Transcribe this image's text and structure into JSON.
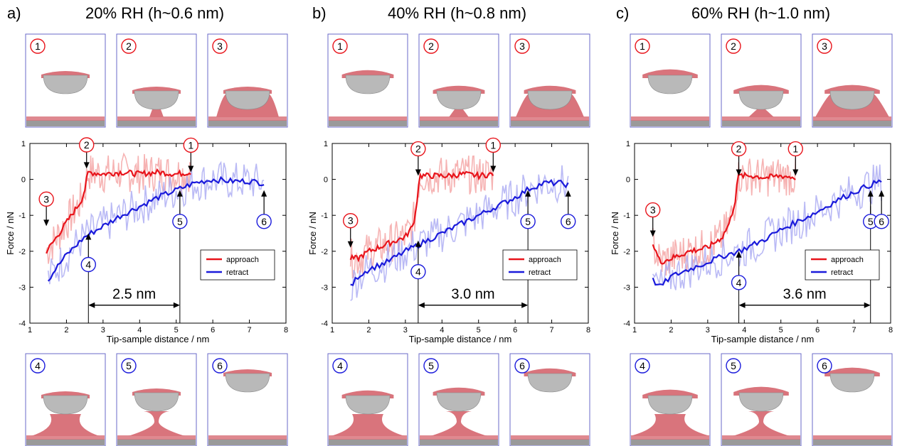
{
  "figure_panels": [
    {
      "letter": "a)",
      "title": "20% RH (h~0.6 nm)",
      "snapshots_top": [
        "1",
        "2",
        "3"
      ],
      "snapshots_bottom": [
        "4",
        "5",
        "6"
      ],
      "dimension_label": "2.5 nm"
    },
    {
      "letter": "b)",
      "title": "40% RH (h~0.8 nm)",
      "snapshots_top": [
        "1",
        "2",
        "3"
      ],
      "snapshots_bottom": [
        "4",
        "5",
        "6"
      ],
      "dimension_label": "3.0 nm"
    },
    {
      "letter": "c)",
      "title": "60% RH  (h~1.0 nm)",
      "snapshots_top": [
        "1",
        "2",
        "3"
      ],
      "snapshots_bottom": [
        "4",
        "5",
        "6"
      ],
      "dimension_label": "3.6 nm"
    }
  ],
  "colors": {
    "approach": "#e8141b",
    "retract": "#1a1adb",
    "approach_light": "#f4a0a0",
    "retract_light": "#a9a9f2",
    "water": "#d9747c",
    "tip": "#b9b9b9",
    "frame": "#6a6ac8"
  },
  "chart_data": [
    {
      "type": "line",
      "xlabel": "Tip-sample distance / nm",
      "ylabel": "Force / nN",
      "xlim": [
        1,
        8
      ],
      "ylim": [
        -4,
        1
      ],
      "xticks": [
        1,
        2,
        3,
        4,
        5,
        6,
        7,
        8
      ],
      "yticks": [
        -4,
        -3,
        -2,
        -1,
        0,
        1
      ],
      "legend_placement": "lower-right",
      "series": [
        {
          "name": "approach",
          "x": [
            1.45,
            1.6,
            1.8,
            2.0,
            2.2,
            2.4,
            2.5,
            2.55,
            2.6,
            3.0,
            3.5,
            4.0,
            4.5,
            5.0,
            5.4
          ],
          "y": [
            -2.0,
            -1.8,
            -1.5,
            -1.2,
            -0.9,
            -0.6,
            -0.3,
            0.0,
            0.2,
            0.15,
            0.2,
            0.15,
            0.2,
            0.15,
            0.2
          ]
        },
        {
          "name": "retract",
          "x": [
            1.5,
            1.7,
            2.0,
            2.5,
            3.0,
            3.5,
            4.0,
            4.5,
            5.0,
            5.5,
            6.0,
            6.5,
            7.0,
            7.4
          ],
          "y": [
            -2.8,
            -2.5,
            -2.1,
            -1.6,
            -1.3,
            -1.0,
            -0.75,
            -0.5,
            -0.3,
            -0.1,
            0.0,
            -0.05,
            -0.05,
            -0.1
          ]
        }
      ],
      "markers": [
        {
          "label": "1",
          "series": "approach",
          "x": 5.4,
          "y": 0.2,
          "position": "above"
        },
        {
          "label": "2",
          "series": "approach",
          "x": 2.55,
          "y": 0.3,
          "position": "above"
        },
        {
          "label": "3",
          "series": "approach",
          "x": 1.45,
          "y": -1.3,
          "position": "above"
        },
        {
          "label": "4",
          "series": "retract",
          "x": 2.6,
          "y": -1.5,
          "position": "below"
        },
        {
          "label": "5",
          "series": "retract",
          "x": 5.1,
          "y": -0.3,
          "position": "below"
        },
        {
          "label": "6",
          "series": "retract",
          "x": 7.4,
          "y": -0.3,
          "position": "below"
        }
      ],
      "dimension": {
        "x1": 2.6,
        "x2": 5.1,
        "y": -3.5,
        "label": "2.5 nm"
      }
    },
    {
      "type": "line",
      "xlabel": "Tip-sample distance / nm",
      "ylabel": "Force / nN",
      "xlim": [
        1,
        8
      ],
      "ylim": [
        -4,
        1
      ],
      "xticks": [
        1,
        2,
        3,
        4,
        5,
        6,
        7,
        8
      ],
      "yticks": [
        -4,
        -3,
        -2,
        -1,
        0,
        1
      ],
      "legend_placement": "lower-right",
      "series": [
        {
          "name": "approach",
          "x": [
            1.5,
            1.7,
            2.0,
            2.5,
            3.0,
            3.2,
            3.3,
            3.35,
            3.4,
            3.8,
            4.2,
            4.6,
            5.0,
            5.4
          ],
          "y": [
            -2.2,
            -2.2,
            -2.0,
            -1.8,
            -1.6,
            -1.3,
            -0.8,
            -0.2,
            0.1,
            0.1,
            0.1,
            0.15,
            0.1,
            0.15
          ]
        },
        {
          "name": "retract",
          "x": [
            1.5,
            1.7,
            2.0,
            2.5,
            3.0,
            3.4,
            4.0,
            4.5,
            5.0,
            5.5,
            6.0,
            6.4,
            6.8,
            7.2,
            7.45
          ],
          "y": [
            -3.0,
            -2.7,
            -2.5,
            -2.3,
            -2.0,
            -1.8,
            -1.5,
            -1.25,
            -1.0,
            -0.75,
            -0.5,
            -0.25,
            -0.1,
            -0.1,
            -0.15
          ]
        }
      ],
      "markers": [
        {
          "label": "1",
          "series": "approach",
          "x": 5.4,
          "y": 0.2,
          "position": "above"
        },
        {
          "label": "2",
          "series": "approach",
          "x": 3.35,
          "y": 0.1,
          "position": "above"
        },
        {
          "label": "3",
          "series": "approach",
          "x": 1.5,
          "y": -1.9,
          "position": "above"
        },
        {
          "label": "4",
          "series": "retract",
          "x": 3.35,
          "y": -1.7,
          "position": "below"
        },
        {
          "label": "5",
          "series": "retract",
          "x": 6.35,
          "y": -0.3,
          "position": "below"
        },
        {
          "label": "6",
          "series": "retract",
          "x": 7.45,
          "y": -0.3,
          "position": "below"
        }
      ],
      "dimension": {
        "x1": 3.35,
        "x2": 6.35,
        "y": -3.5,
        "label": "3.0 nm"
      }
    },
    {
      "type": "line",
      "xlabel": "Tip-sample distance / nm",
      "ylabel": "Force / nN",
      "xlim": [
        1,
        8
      ],
      "ylim": [
        -4,
        1
      ],
      "xticks": [
        1,
        2,
        3,
        4,
        5,
        6,
        7,
        8
      ],
      "yticks": [
        -4,
        -3,
        -2,
        -1,
        0,
        1
      ],
      "legend_placement": "lower-right",
      "series": [
        {
          "name": "approach",
          "x": [
            1.5,
            1.7,
            2.0,
            2.5,
            3.0,
            3.4,
            3.6,
            3.75,
            3.8,
            3.85,
            4.2,
            4.6,
            5.0,
            5.4
          ],
          "y": [
            -1.8,
            -2.3,
            -2.2,
            -2.0,
            -1.9,
            -1.6,
            -1.2,
            -0.6,
            -0.1,
            0.1,
            0.1,
            0.05,
            0.1,
            0.05
          ]
        },
        {
          "name": "retract",
          "x": [
            1.5,
            1.7,
            2.0,
            2.5,
            3.0,
            3.5,
            3.85,
            4.5,
            5.0,
            5.5,
            6.0,
            6.5,
            7.0,
            7.45,
            7.75
          ],
          "y": [
            -2.8,
            -3.0,
            -2.7,
            -2.5,
            -2.3,
            -2.1,
            -2.0,
            -1.7,
            -1.4,
            -1.15,
            -0.9,
            -0.6,
            -0.35,
            -0.15,
            -0.05
          ]
        }
      ],
      "markers": [
        {
          "label": "1",
          "series": "approach",
          "x": 5.4,
          "y": 0.1,
          "position": "above"
        },
        {
          "label": "2",
          "series": "approach",
          "x": 3.85,
          "y": 0.1,
          "position": "above"
        },
        {
          "label": "3",
          "series": "approach",
          "x": 1.5,
          "y": -1.6,
          "position": "above"
        },
        {
          "label": "4",
          "series": "retract",
          "x": 3.85,
          "y": -2.0,
          "position": "below"
        },
        {
          "label": "5",
          "series": "retract",
          "x": 7.45,
          "y": -0.3,
          "position": "below"
        },
        {
          "label": "6",
          "series": "retract",
          "x": 7.75,
          "y": -0.3,
          "position": "below"
        }
      ],
      "dimension": {
        "x1": 3.85,
        "x2": 7.45,
        "y": -3.5,
        "label": "3.6 nm"
      }
    }
  ]
}
